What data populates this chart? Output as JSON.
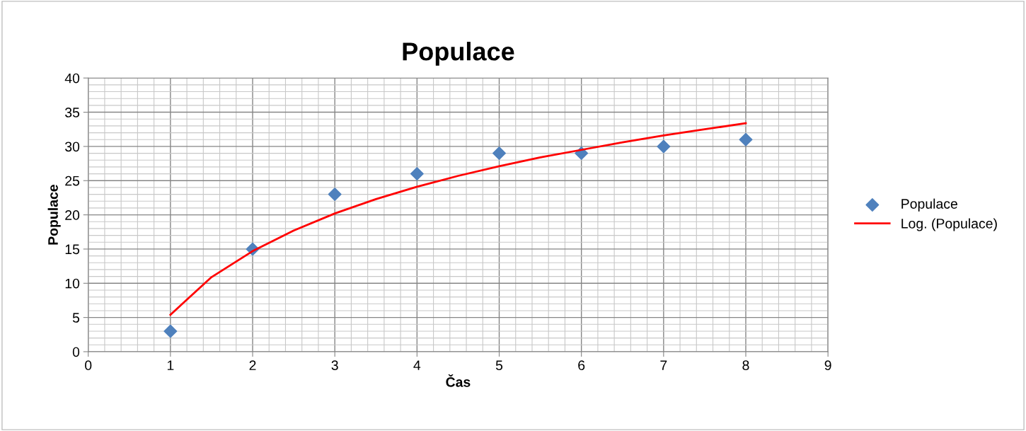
{
  "chart_data": {
    "type": "scatter",
    "title": "Populace",
    "xlabel": "Čas",
    "ylabel": "Populace",
    "xlim": [
      0,
      9
    ],
    "xticks": [
      0,
      1,
      2,
      3,
      4,
      5,
      6,
      7,
      8,
      9
    ],
    "ylim": [
      0,
      40
    ],
    "yticks": [
      0,
      5,
      10,
      15,
      20,
      25,
      30,
      35,
      40
    ],
    "grid": true,
    "legend": "right",
    "series": [
      {
        "name": "Populace",
        "marker": "diamond",
        "color": "#4f81bd",
        "x": [
          1,
          2,
          3,
          4,
          5,
          6,
          7,
          8
        ],
        "values": [
          3,
          15,
          23,
          26,
          29,
          29,
          30,
          31
        ]
      },
      {
        "name": "Log. (Populace)",
        "type": "line",
        "color": "#ff0000",
        "x": [
          1,
          1.5,
          2,
          2.5,
          3,
          3.5,
          4,
          4.5,
          5,
          5.5,
          6,
          6.5,
          7,
          7.5,
          8
        ],
        "values": [
          5.4,
          10.9,
          14.7,
          17.7,
          20.2,
          22.3,
          24.1,
          25.7,
          27.1,
          28.4,
          29.5,
          30.6,
          31.6,
          32.5,
          33.4
        ]
      }
    ]
  }
}
